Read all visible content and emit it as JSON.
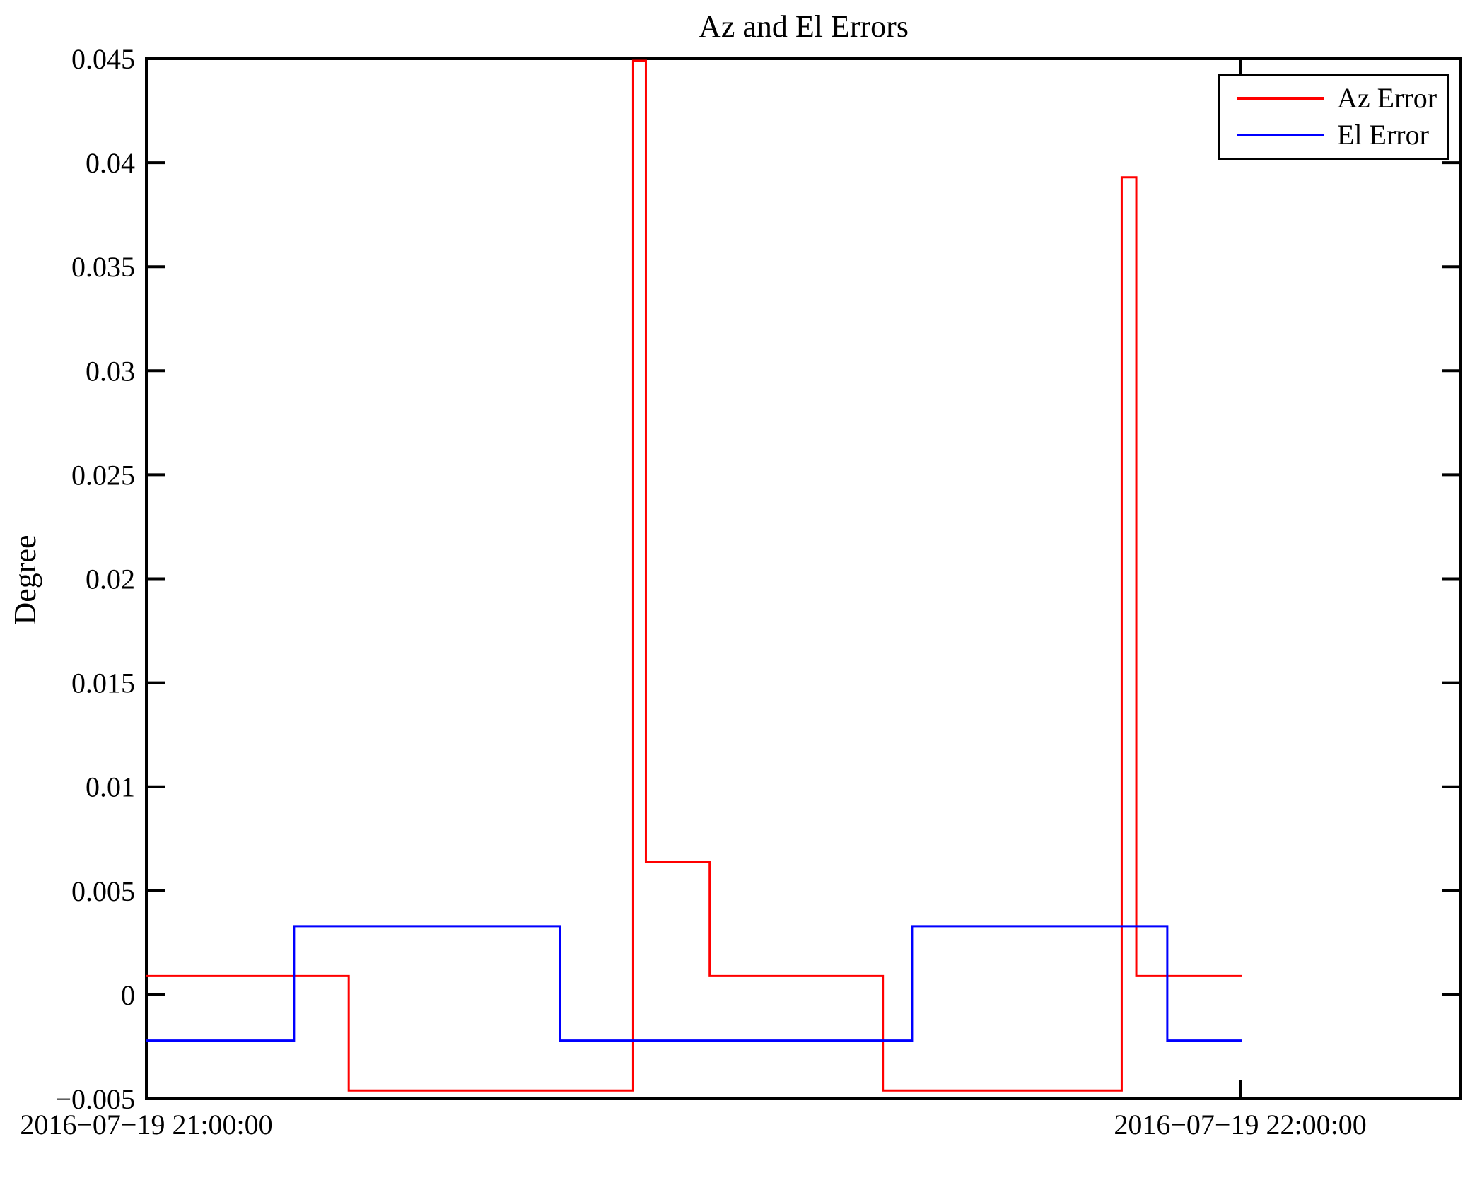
{
  "figure": {
    "title": "Az and El Errors",
    "y_axis_label": "Degree",
    "background": "#ffffff",
    "axis_color": "#000000"
  },
  "legend": {
    "entries": [
      {
        "label": "Az Error",
        "color": "#ff0000"
      },
      {
        "label": "El Error",
        "color": "#0000ff"
      }
    ]
  },
  "chart_data": {
    "type": "line",
    "step_mode": "post",
    "title": "Az and El Errors",
    "xlabel": "",
    "ylabel": "Degree",
    "x_unit": "minutes after 2016-07-19 21:00:00",
    "xlim": [
      0,
      72.1
    ],
    "ylim": [
      -0.005,
      0.045
    ],
    "grid": false,
    "legend_position": "top-right",
    "x_ticks": [
      {
        "t": 0,
        "label": "2016−07−19 21:00:00"
      },
      {
        "t": 60,
        "label": "2016−07−19 22:00:00"
      }
    ],
    "y_ticks": [
      {
        "v": -0.005,
        "label": "−0.005"
      },
      {
        "v": 0,
        "label": "0"
      },
      {
        "v": 0.005,
        "label": "0.005"
      },
      {
        "v": 0.01,
        "label": "0.01"
      },
      {
        "v": 0.015,
        "label": "0.015"
      },
      {
        "v": 0.02,
        "label": "0.02"
      },
      {
        "v": 0.025,
        "label": "0.025"
      },
      {
        "v": 0.03,
        "label": "0.03"
      },
      {
        "v": 0.035,
        "label": "0.035"
      },
      {
        "v": 0.04,
        "label": "0.04"
      },
      {
        "v": 0.045,
        "label": "0.045"
      }
    ],
    "series": [
      {
        "name": "Az Error",
        "color": "#ff0000",
        "points": [
          [
            0,
            0.0009
          ],
          [
            11.1,
            -0.0046
          ],
          [
            26.7,
            0.0449
          ],
          [
            27.4,
            0.0064
          ],
          [
            30.9,
            0.0009
          ],
          [
            40.4,
            -0.0046
          ],
          [
            53.5,
            0.0393
          ],
          [
            54.3,
            0.0009
          ],
          [
            60.1,
            0.0009
          ]
        ]
      },
      {
        "name": "El Error",
        "color": "#0000ff",
        "points": [
          [
            0,
            -0.0022
          ],
          [
            8.1,
            0.0033
          ],
          [
            22.7,
            -0.0022
          ],
          [
            42,
            0.0033
          ],
          [
            56,
            -0.0022
          ],
          [
            60.1,
            -0.0022
          ]
        ]
      }
    ]
  }
}
